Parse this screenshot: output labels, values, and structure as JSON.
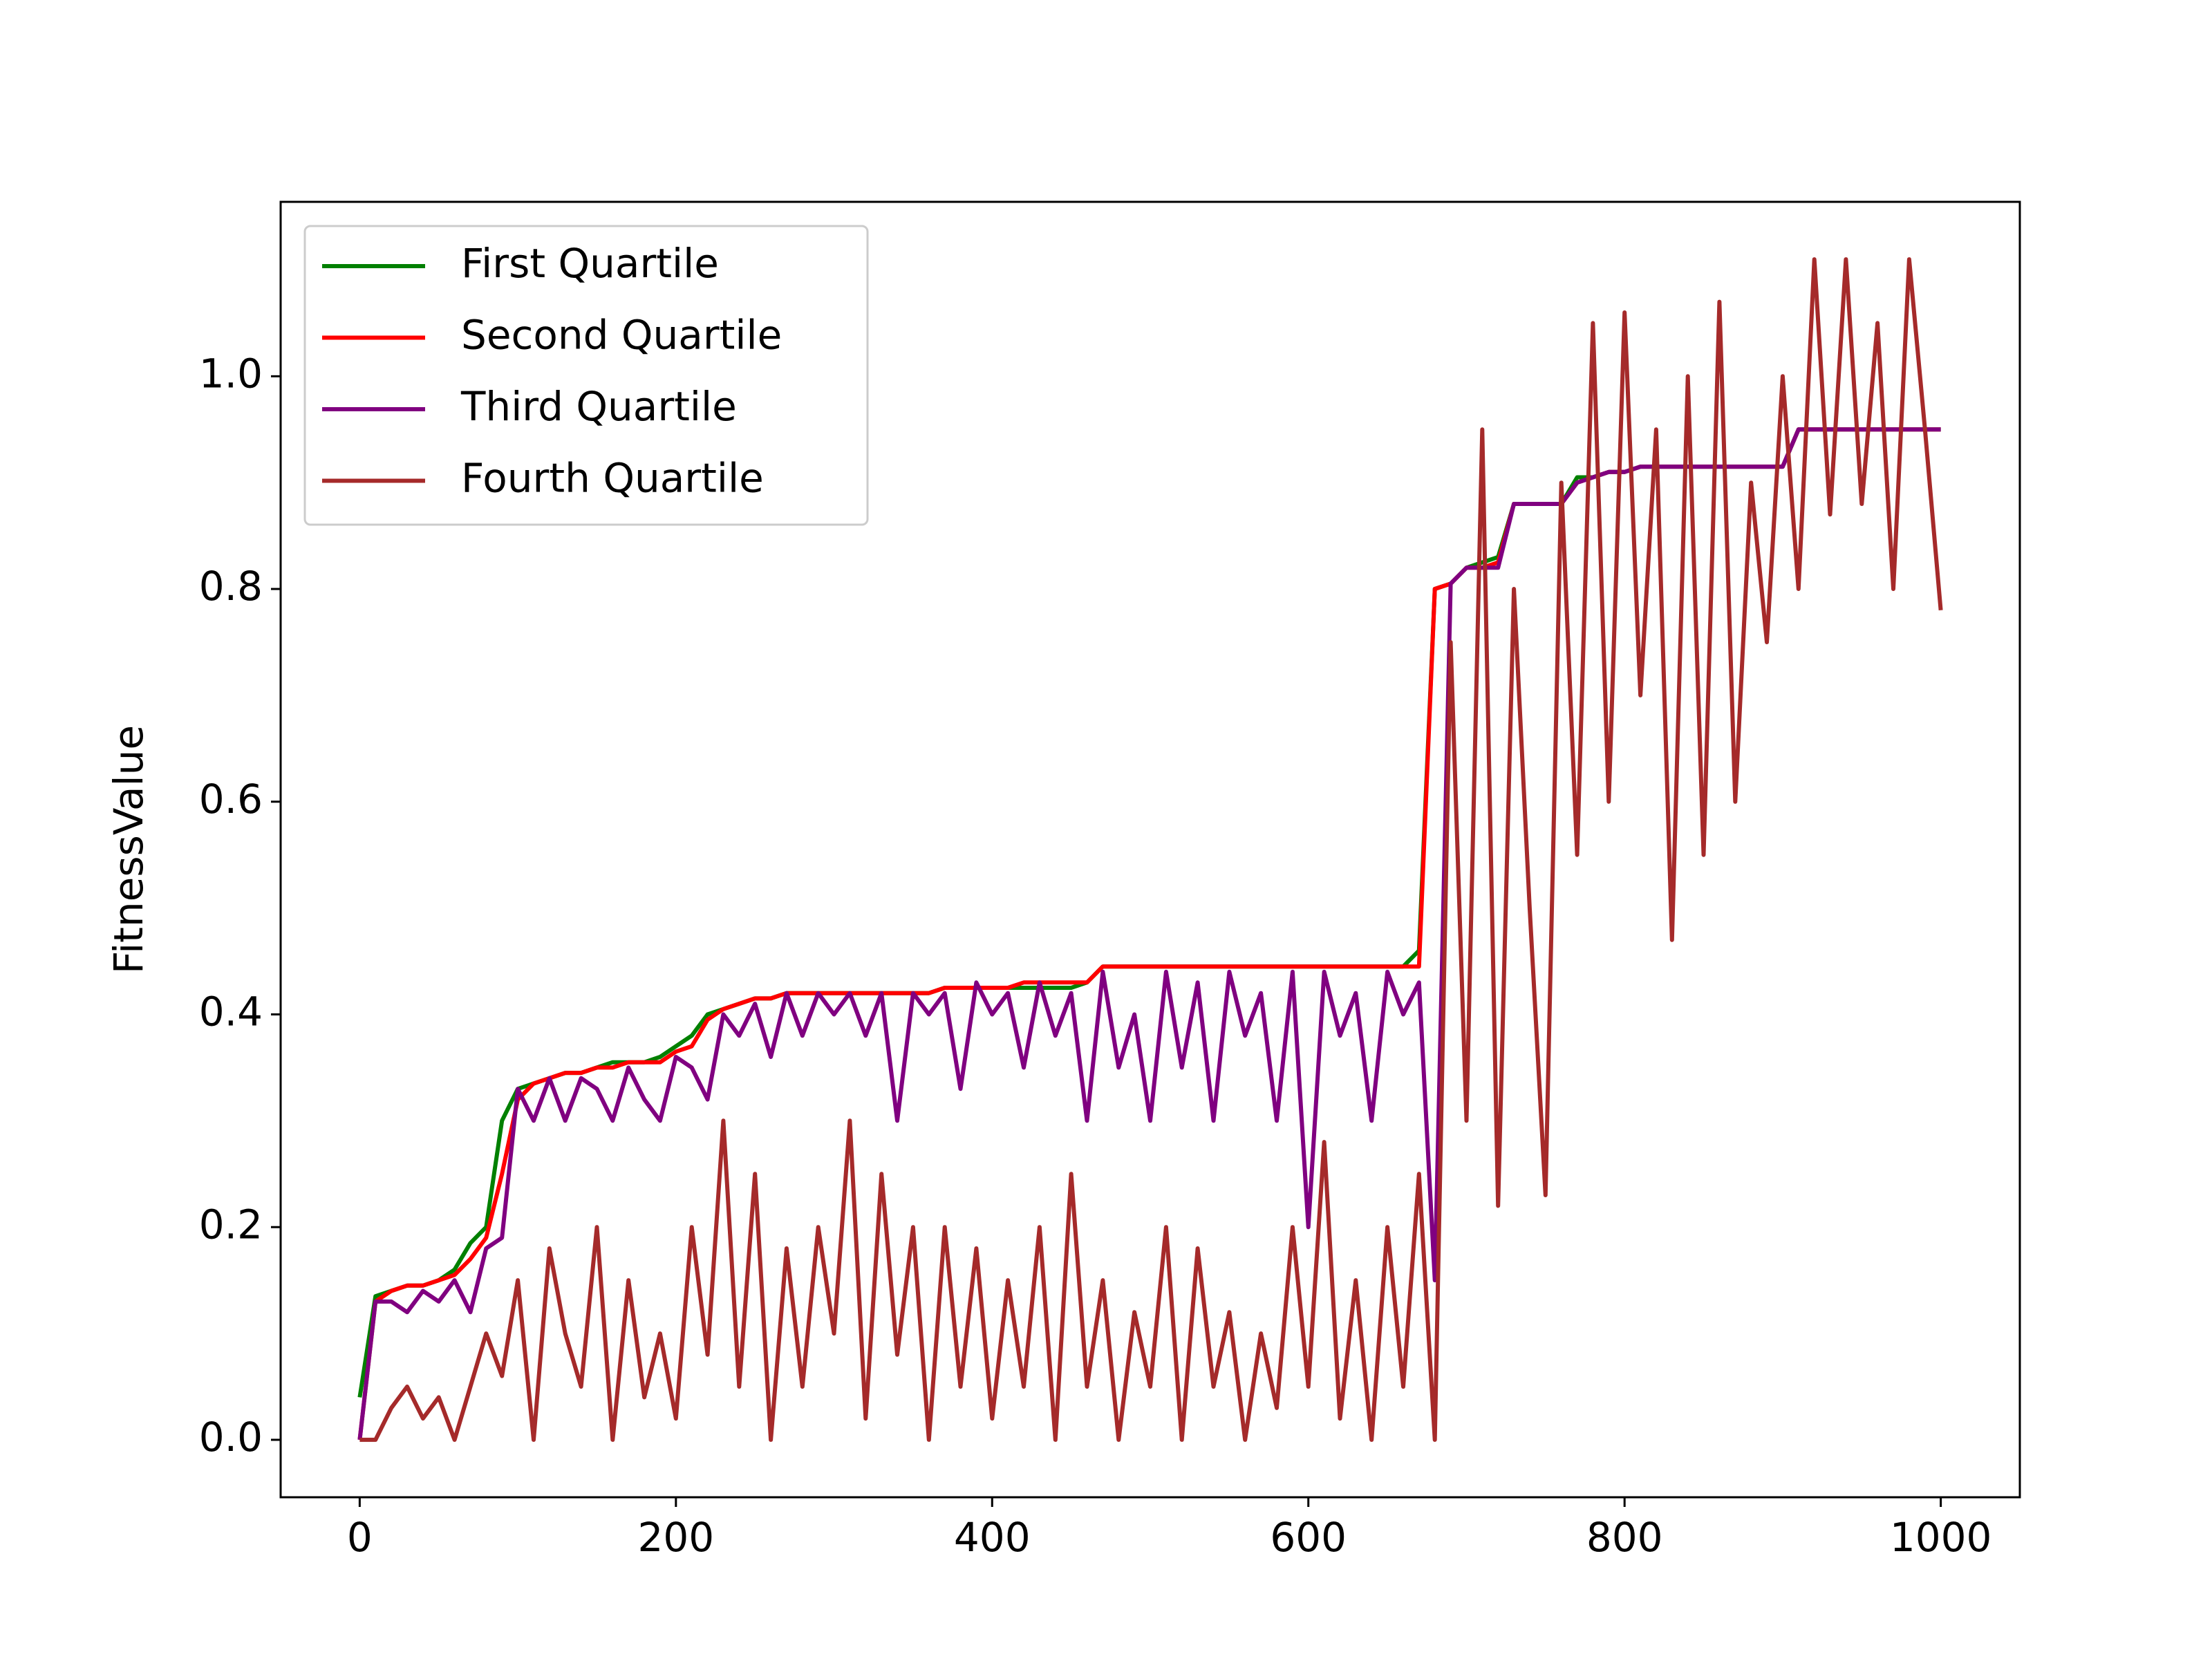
{
  "chart_data": {
    "type": "line",
    "ylabel": "FitnessValue",
    "x": [
      0,
      10,
      20,
      30,
      40,
      50,
      60,
      70,
      80,
      90,
      100,
      110,
      120,
      130,
      140,
      150,
      160,
      170,
      180,
      190,
      200,
      210,
      220,
      230,
      240,
      250,
      260,
      270,
      280,
      290,
      300,
      310,
      320,
      330,
      340,
      350,
      360,
      370,
      380,
      390,
      400,
      410,
      420,
      430,
      440,
      450,
      460,
      470,
      480,
      490,
      500,
      510,
      520,
      530,
      540,
      550,
      560,
      570,
      580,
      590,
      600,
      610,
      620,
      630,
      640,
      650,
      660,
      670,
      680,
      690,
      700,
      710,
      720,
      730,
      740,
      750,
      760,
      770,
      780,
      790,
      800,
      810,
      820,
      830,
      840,
      850,
      860,
      870,
      880,
      890,
      900,
      910,
      920,
      930,
      940,
      950,
      960,
      970,
      980,
      990,
      1000
    ],
    "series": [
      {
        "name": "First Quartile",
        "color": "#008000",
        "values": [
          0.04,
          0.135,
          0.14,
          0.145,
          0.145,
          0.15,
          0.16,
          0.185,
          0.2,
          0.3,
          0.33,
          0.335,
          0.34,
          0.345,
          0.345,
          0.35,
          0.355,
          0.355,
          0.355,
          0.36,
          0.37,
          0.38,
          0.4,
          0.405,
          0.41,
          0.415,
          0.415,
          0.42,
          0.42,
          0.42,
          0.42,
          0.42,
          0.42,
          0.42,
          0.42,
          0.42,
          0.42,
          0.425,
          0.425,
          0.425,
          0.425,
          0.425,
          0.425,
          0.425,
          0.425,
          0.425,
          0.43,
          0.445,
          0.445,
          0.445,
          0.445,
          0.445,
          0.445,
          0.445,
          0.445,
          0.445,
          0.445,
          0.445,
          0.445,
          0.445,
          0.445,
          0.445,
          0.445,
          0.445,
          0.445,
          0.445,
          0.445,
          0.46,
          0.8,
          0.805,
          0.82,
          0.825,
          0.83,
          0.88,
          0.88,
          0.88,
          0.88,
          0.905,
          0.905,
          0.91,
          0.91,
          0.915,
          0.915,
          0.915,
          0.915,
          0.915,
          0.915,
          0.915,
          0.915,
          0.915,
          0.915,
          0.95,
          0.95,
          0.95,
          0.95,
          0.95,
          0.95,
          0.95,
          0.95,
          0.95,
          0.95
        ]
      },
      {
        "name": "Second Quartile",
        "color": "#ff0000",
        "values": [
          0,
          0.13,
          0.14,
          0.145,
          0.145,
          0.15,
          0.155,
          0.17,
          0.19,
          0.25,
          0.32,
          0.335,
          0.34,
          0.345,
          0.345,
          0.35,
          0.35,
          0.355,
          0.355,
          0.355,
          0.365,
          0.37,
          0.395,
          0.405,
          0.41,
          0.415,
          0.415,
          0.42,
          0.42,
          0.42,
          0.42,
          0.42,
          0.42,
          0.42,
          0.42,
          0.42,
          0.42,
          0.425,
          0.425,
          0.425,
          0.425,
          0.425,
          0.43,
          0.43,
          0.43,
          0.43,
          0.43,
          0.445,
          0.445,
          0.445,
          0.445,
          0.445,
          0.445,
          0.445,
          0.445,
          0.445,
          0.445,
          0.445,
          0.445,
          0.445,
          0.445,
          0.445,
          0.445,
          0.445,
          0.445,
          0.445,
          0.445,
          0.445,
          0.8,
          0.805,
          0.82,
          0.82,
          0.825,
          0.88,
          0.88,
          0.88,
          0.88,
          0.9,
          0.905,
          0.91,
          0.91,
          0.915,
          0.915,
          0.915,
          0.915,
          0.915,
          0.915,
          0.915,
          0.915,
          0.915,
          0.915,
          0.95,
          0.95,
          0.95,
          0.95,
          0.95,
          0.95,
          0.95,
          0.95,
          0.95,
          0.95
        ]
      },
      {
        "name": "Third Quartile",
        "color": "#800080",
        "values": [
          0,
          0.13,
          0.13,
          0.12,
          0.14,
          0.13,
          0.15,
          0.12,
          0.18,
          0.19,
          0.33,
          0.3,
          0.34,
          0.3,
          0.34,
          0.33,
          0.3,
          0.35,
          0.32,
          0.3,
          0.36,
          0.35,
          0.32,
          0.4,
          0.38,
          0.41,
          0.36,
          0.42,
          0.38,
          0.42,
          0.4,
          0.42,
          0.38,
          0.42,
          0.3,
          0.42,
          0.4,
          0.42,
          0.33,
          0.43,
          0.4,
          0.42,
          0.35,
          0.43,
          0.38,
          0.42,
          0.3,
          0.44,
          0.35,
          0.4,
          0.3,
          0.44,
          0.35,
          0.43,
          0.3,
          0.44,
          0.38,
          0.42,
          0.3,
          0.44,
          0.2,
          0.44,
          0.38,
          0.42,
          0.3,
          0.44,
          0.4,
          0.43,
          0.15,
          0.805,
          0.82,
          0.82,
          0.82,
          0.88,
          0.88,
          0.88,
          0.88,
          0.9,
          0.905,
          0.91,
          0.91,
          0.915,
          0.915,
          0.915,
          0.915,
          0.915,
          0.915,
          0.915,
          0.915,
          0.915,
          0.915,
          0.95,
          0.95,
          0.95,
          0.95,
          0.95,
          0.95,
          0.95,
          0.95,
          0.95,
          0.95
        ]
      },
      {
        "name": "Fourth Quartile",
        "color": "#a52a2a",
        "values": [
          0,
          0,
          0.03,
          0.05,
          0.02,
          0.04,
          0,
          0.05,
          0.1,
          0.06,
          0.15,
          0,
          0.18,
          0.1,
          0.05,
          0.2,
          0,
          0.15,
          0.04,
          0.1,
          0.02,
          0.2,
          0.08,
          0.3,
          0.05,
          0.25,
          0,
          0.18,
          0.05,
          0.2,
          0.1,
          0.3,
          0.02,
          0.25,
          0.08,
          0.2,
          0,
          0.2,
          0.05,
          0.18,
          0.02,
          0.15,
          0.05,
          0.2,
          0,
          0.25,
          0.05,
          0.15,
          0,
          0.12,
          0.05,
          0.2,
          0,
          0.18,
          0.05,
          0.12,
          0,
          0.1,
          0.03,
          0.2,
          0.05,
          0.28,
          0.02,
          0.15,
          0,
          0.2,
          0.05,
          0.25,
          0,
          0.75,
          0.3,
          0.95,
          0.22,
          0.8,
          0.5,
          0.23,
          0.9,
          0.55,
          1.05,
          0.6,
          1.06,
          0.7,
          0.95,
          0.47,
          1.0,
          0.55,
          1.07,
          0.6,
          0.9,
          0.75,
          1.0,
          0.8,
          1.11,
          0.87,
          1.11,
          0.88,
          1.05,
          0.8,
          1.11,
          0.95,
          0.78
        ]
      }
    ],
    "xlim": [
      -50,
      1050
    ],
    "ylim": [
      -0.054,
      1.164
    ],
    "xticks": [
      0,
      200,
      400,
      600,
      800,
      1000
    ],
    "yticks": [
      {
        "value": 0,
        "label": "0.0"
      },
      0.2,
      0.4,
      0.6,
      0.8,
      {
        "value": 1,
        "label": "1.0"
      }
    ],
    "legend": "upper left"
  }
}
